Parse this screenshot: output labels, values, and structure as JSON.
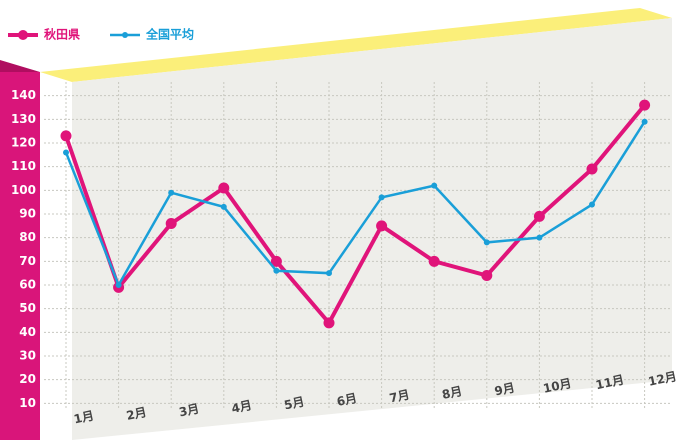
{
  "chart_data": {
    "type": "line",
    "categories": [
      "1月",
      "2月",
      "3月",
      "4月",
      "5月",
      "6月",
      "7月",
      "8月",
      "9月",
      "10月",
      "11月",
      "12月"
    ],
    "series": [
      {
        "name": "秋田県",
        "color": "#e0147a",
        "values": [
          123,
          59,
          86,
          101,
          70,
          44,
          85,
          70,
          64,
          89,
          109,
          136
        ]
      },
      {
        "name": "全国平均",
        "color": "#1a9fd8",
        "values": [
          116,
          60,
          99,
          93,
          66,
          65,
          97,
          102,
          78,
          80,
          94,
          129
        ]
      }
    ],
    "ylim": [
      0,
      150
    ],
    "yticks": [
      10,
      20,
      30,
      40,
      50,
      60,
      70,
      80,
      90,
      100,
      110,
      120,
      130,
      140
    ],
    "grid": true
  }
}
